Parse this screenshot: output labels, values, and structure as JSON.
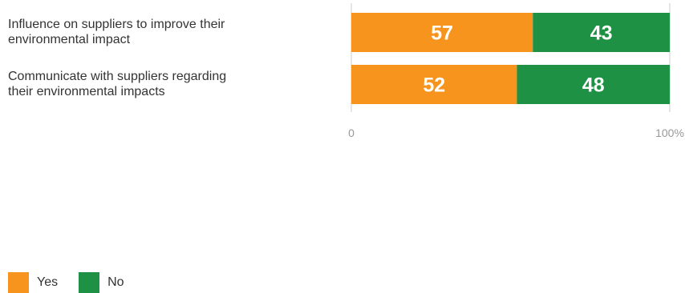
{
  "colors": {
    "yes": "#f7941d",
    "no": "#1e9144",
    "axis": "#cccccc",
    "tick_text": "#999999",
    "label_text": "#333333",
    "value_text": "#ffffff"
  },
  "chart_data": {
    "type": "bar",
    "orientation": "horizontal",
    "stacked": true,
    "categories": [
      [
        "Influence on suppliers to improve their",
        "environmental impact"
      ],
      [
        "Communicate with suppliers regarding",
        "their environmental impacts"
      ]
    ],
    "series": [
      {
        "name": "Yes",
        "values": [
          57,
          52
        ]
      },
      {
        "name": "No",
        "values": [
          43,
          48
        ]
      }
    ],
    "xlim": [
      0,
      100
    ],
    "x_ticks": [
      "0",
      "100%"
    ],
    "grid": false,
    "legend_position": "bottom-left"
  },
  "legend": {
    "yes_label": "Yes",
    "no_label": "No"
  }
}
